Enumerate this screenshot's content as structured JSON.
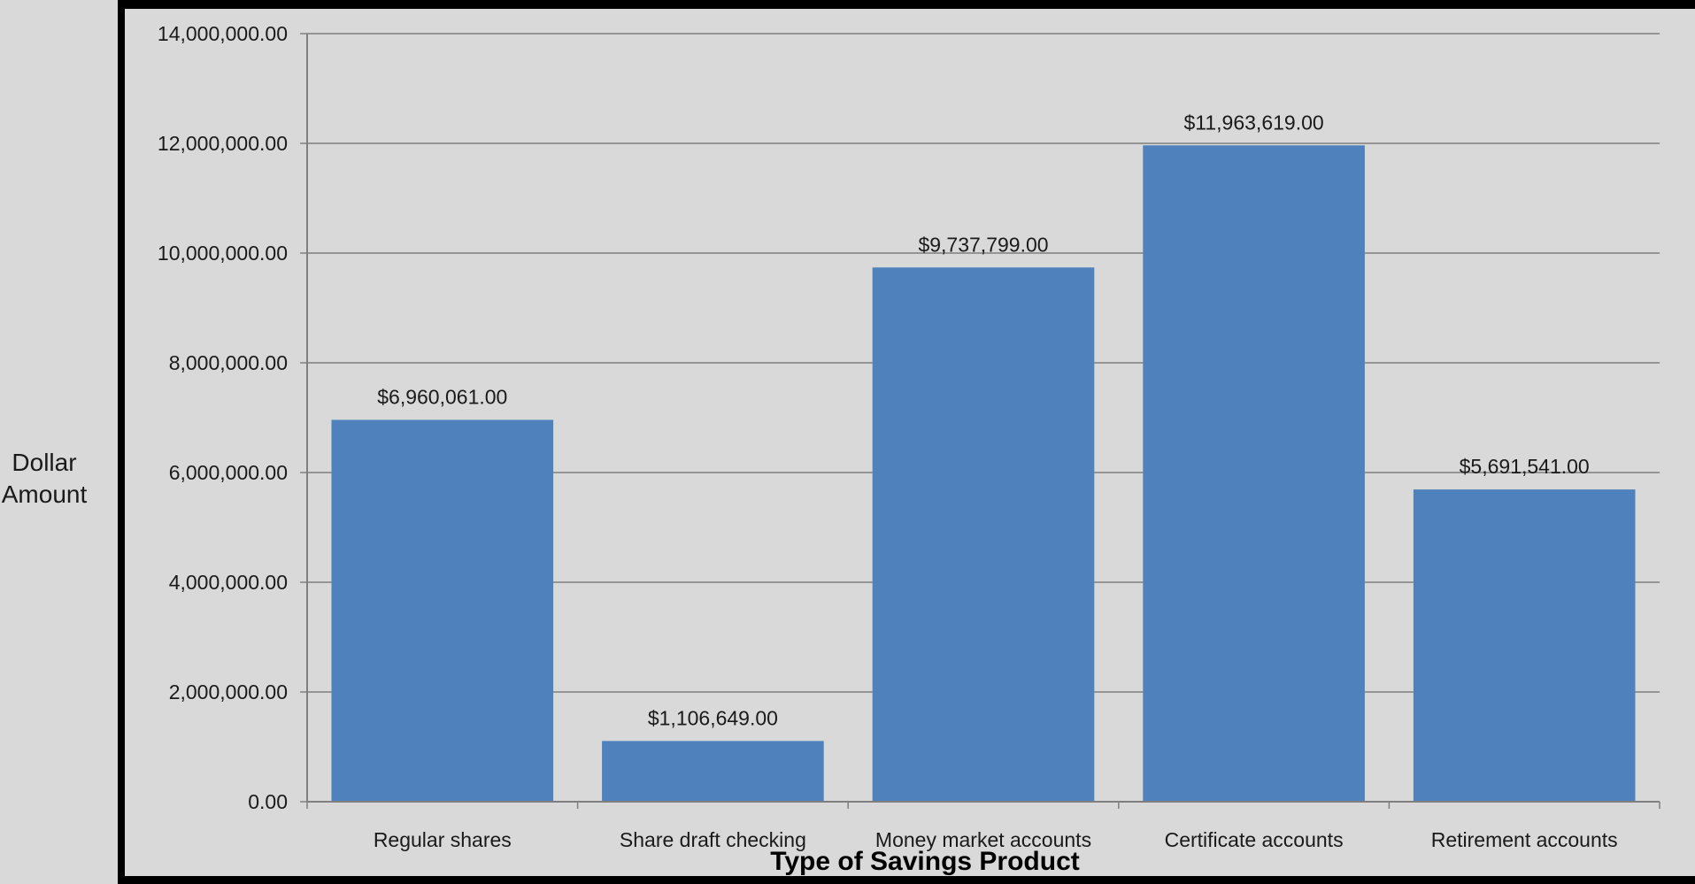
{
  "chart_data": {
    "type": "bar",
    "title": "",
    "xlabel": "Type of Savings Product",
    "ylabel": "Dollar Amount",
    "ylim": [
      0,
      14000000
    ],
    "yticks": [
      0,
      2000000,
      4000000,
      6000000,
      8000000,
      10000000,
      12000000,
      14000000
    ],
    "ytick_labels": [
      "0.00",
      "2,000,000.00",
      "4,000,000.00",
      "6,000,000.00",
      "8,000,000.00",
      "10,000,000.00",
      "12,000,000.00",
      "14,000,000.00"
    ],
    "categories": [
      "Regular shares",
      "Share draft checking",
      "Money market accounts",
      "Certificate accounts",
      "Retirement  accounts"
    ],
    "values": [
      6960061,
      1106649,
      9737799,
      11963619,
      5691541
    ],
    "data_labels": [
      "$6,960,061.00",
      "$1,106,649.00",
      "$9,737,799.00",
      "$11,963,619.00",
      "$5,691,541.00"
    ],
    "grid": true,
    "legend": "none",
    "colors": {
      "bar": "#4f81bd",
      "grid": "#7f7f7f",
      "background": "#d9d9d9",
      "frame": "#000000"
    }
  }
}
